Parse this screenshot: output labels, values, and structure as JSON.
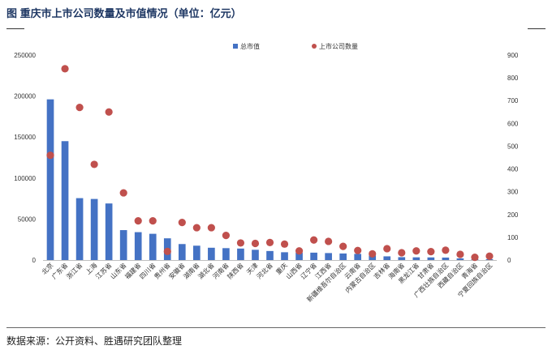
{
  "title": "图  重庆市上市公司数量及市值情况（单位：亿元）",
  "source": "数据来源：公开资料、胜遇研究团队整理",
  "colors": {
    "bar": "#4472c4",
    "dot": "#c0504d",
    "title": "#1f3864"
  },
  "chart_data": {
    "type": "bar",
    "categories": [
      "北京",
      "广东省",
      "浙江省",
      "上海",
      "江苏省",
      "山东省",
      "福建省",
      "四川省",
      "贵州省",
      "安徽省",
      "湖南省",
      "湖北省",
      "河南省",
      "陕西省",
      "天津",
      "河北省",
      "重庆",
      "山西省",
      "辽宁省",
      "江西省",
      "新疆维吾尔自治区",
      "云南省",
      "内蒙古自治区",
      "吉林省",
      "海南省",
      "黑龙江省",
      "甘肃省",
      "广西壮族自治区",
      "西藏自治区",
      "青海省",
      "宁夏回族自治区"
    ],
    "series": [
      {
        "name": "总市值",
        "type": "bar",
        "axis": "left",
        "values": [
          196000,
          145000,
          75500,
          74500,
          69000,
          36500,
          34000,
          32000,
          26500,
          19500,
          17500,
          15000,
          14500,
          14000,
          12500,
          11000,
          9500,
          9000,
          9000,
          8500,
          8000,
          7500,
          5500,
          4500,
          3500,
          3300,
          3200,
          3000,
          2000,
          1000,
          1000
        ]
      },
      {
        "name": "上市公司数量",
        "type": "scatter",
        "axis": "right",
        "values": [
          460,
          840,
          670,
          420,
          650,
          295,
          172,
          172,
          38,
          165,
          142,
          142,
          108,
          75,
          73,
          77,
          70,
          40,
          88,
          82,
          60,
          42,
          27,
          50,
          32,
          40,
          37,
          43,
          25,
          12,
          17
        ]
      }
    ],
    "ylim_left": [
      0,
      250000
    ],
    "yticks_left": [
      "0",
      "50000",
      "100000",
      "150000",
      "200000",
      "250000"
    ],
    "ylim_right": [
      0,
      900
    ],
    "yticks_right": [
      "0",
      "100",
      "200",
      "300",
      "400",
      "500",
      "600",
      "700",
      "800",
      "900"
    ],
    "legend": "top-center"
  }
}
